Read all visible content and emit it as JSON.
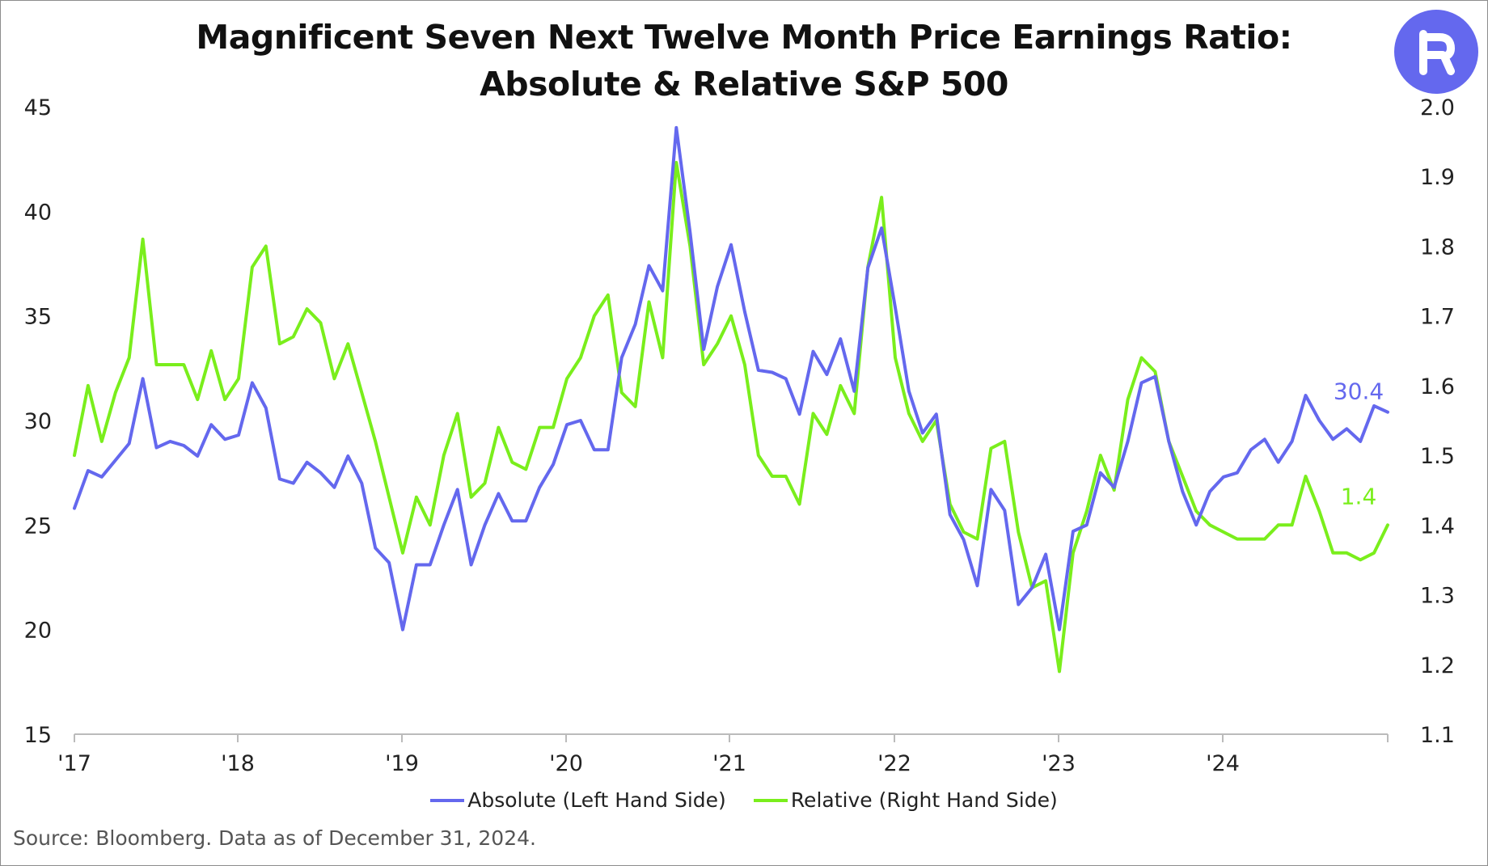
{
  "page": {
    "title_line1": "Magnificent Seven Next Twelve Month Price Earnings Ratio:",
    "title_line2": "Absolute & Relative S&P 500",
    "source": "Source: Bloomberg. Data as of December 31, 2024.",
    "logo_glyph": "R",
    "logo_color": "#6468ee"
  },
  "legend": {
    "absolute_label": "Absolute (Left Hand Side)",
    "relative_label": "Relative (Right Hand Side)"
  },
  "chart_data": {
    "type": "line",
    "title": "Magnificent Seven Next Twelve Month Price Earnings Ratio: Absolute & Relative S&P 500",
    "x_tick_labels": [
      "'17",
      "'18",
      "'19",
      "'20",
      "'21",
      "'22",
      "'23",
      "'24"
    ],
    "x_range": [
      "2017-01",
      "2025-01"
    ],
    "y_left": {
      "ylim": [
        15,
        45
      ],
      "ticks": [
        "15",
        "20",
        "25",
        "30",
        "35",
        "40",
        "45"
      ]
    },
    "y_right": {
      "ylim": [
        1.1,
        2.0
      ],
      "ticks": [
        "1.1",
        "1.2",
        "1.3",
        "1.4",
        "1.5",
        "1.6",
        "1.7",
        "1.8",
        "1.9",
        "2.0"
      ]
    },
    "grid": false,
    "legend_position": "bottom",
    "series": [
      {
        "name": "Absolute (Left Hand Side)",
        "axis": "left",
        "color": "#6468ee",
        "end_label": "30.4",
        "values": [
          25.8,
          27.6,
          27.3,
          28.1,
          28.9,
          32.0,
          28.7,
          29.0,
          28.8,
          28.3,
          29.8,
          29.1,
          29.3,
          31.8,
          30.6,
          27.2,
          27.0,
          28.0,
          27.5,
          26.8,
          28.3,
          27.0,
          23.9,
          23.2,
          20.0,
          23.1,
          23.1,
          25.0,
          26.7,
          23.1,
          25.0,
          26.5,
          25.2,
          25.2,
          26.8,
          27.9,
          29.8,
          30.0,
          28.6,
          28.6,
          33.0,
          34.6,
          37.4,
          36.2,
          44.0,
          39.0,
          33.4,
          36.4,
          38.4,
          35.2,
          32.4,
          32.3,
          32.0,
          30.3,
          33.3,
          32.2,
          33.9,
          31.4,
          37.3,
          39.2,
          35.4,
          31.4,
          29.4,
          30.3,
          25.5,
          24.3,
          22.1,
          26.7,
          25.7,
          21.2,
          22.0,
          23.6,
          20.0,
          24.7,
          25.0,
          27.5,
          26.8,
          29.0,
          31.8,
          32.1,
          29.0,
          26.6,
          25.0,
          26.6,
          27.3,
          27.5,
          28.6,
          29.1,
          28.0,
          29.0,
          31.2,
          30.0,
          29.1,
          29.6,
          29.0,
          30.7,
          30.4
        ],
        "end_value": 30.4
      },
      {
        "name": "Relative (Right Hand Side)",
        "axis": "right",
        "color": "#7aee1c",
        "end_label": "1.4",
        "values": [
          1.5,
          1.6,
          1.52,
          1.59,
          1.64,
          1.81,
          1.63,
          1.63,
          1.63,
          1.58,
          1.65,
          1.58,
          1.61,
          1.77,
          1.8,
          1.66,
          1.67,
          1.71,
          1.69,
          1.61,
          1.66,
          1.59,
          1.52,
          1.44,
          1.36,
          1.44,
          1.4,
          1.5,
          1.56,
          1.44,
          1.46,
          1.54,
          1.49,
          1.48,
          1.54,
          1.54,
          1.61,
          1.64,
          1.7,
          1.73,
          1.59,
          1.57,
          1.72,
          1.64,
          1.92,
          1.8,
          1.63,
          1.66,
          1.7,
          1.63,
          1.5,
          1.47,
          1.47,
          1.43,
          1.56,
          1.53,
          1.6,
          1.56,
          1.77,
          1.87,
          1.64,
          1.56,
          1.52,
          1.55,
          1.43,
          1.39,
          1.38,
          1.51,
          1.52,
          1.39,
          1.31,
          1.32,
          1.19,
          1.36,
          1.42,
          1.5,
          1.45,
          1.58,
          1.64,
          1.62,
          1.52,
          1.47,
          1.42,
          1.4,
          1.39,
          1.38,
          1.38,
          1.38,
          1.4,
          1.4,
          1.47,
          1.42,
          1.36,
          1.36,
          1.35,
          1.36,
          1.4
        ],
        "end_value": 1.4
      }
    ]
  }
}
